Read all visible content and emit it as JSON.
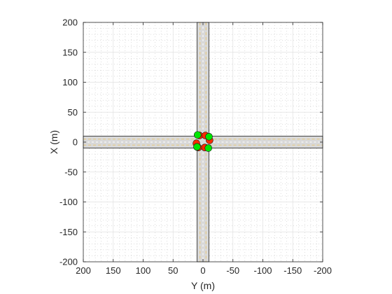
{
  "chart_data": {
    "type": "scatter",
    "title": "",
    "xlabel": "Y (m)",
    "ylabel": "X (m)",
    "xlim": [
      200,
      -200
    ],
    "ylim": [
      -200,
      200
    ],
    "x_ticks": [
      "200",
      "150",
      "100",
      "50",
      "0",
      "-50",
      "-100",
      "-150",
      "-200"
    ],
    "y_ticks": [
      "200",
      "150",
      "100",
      "50",
      "0",
      "-50",
      "-100",
      "-150",
      "-200"
    ],
    "grid": true,
    "minor_grid": true,
    "roads": {
      "vertical_road": {
        "y_range": [
          -10,
          10
        ],
        "x_range": [
          -200,
          200
        ]
      },
      "horizontal_road": {
        "x_range": [
          -10,
          10
        ],
        "y_range": [
          -200,
          200
        ]
      }
    },
    "series": [
      {
        "color": "#ff2a00",
        "points": [
          {
            "y": 6,
            "x": 11
          },
          {
            "y": -4,
            "x": 11
          },
          {
            "y": -11,
            "x": 3
          },
          {
            "y": -3,
            "x": -9
          },
          {
            "y": 8,
            "x": -9
          },
          {
            "y": 11,
            "x": -2
          }
        ]
      },
      {
        "color": "#00e600",
        "points": [
          {
            "y": 9,
            "x": 12
          },
          {
            "y": -10,
            "x": 9
          },
          {
            "y": -9,
            "x": -10
          },
          {
            "y": 10,
            "x": -8
          }
        ]
      }
    ],
    "colors": {
      "road_fill": "#d8d8d8",
      "road_edge": "#222222",
      "lane_marking": "#e8c87a",
      "lane_dash": "#ffffff"
    }
  }
}
